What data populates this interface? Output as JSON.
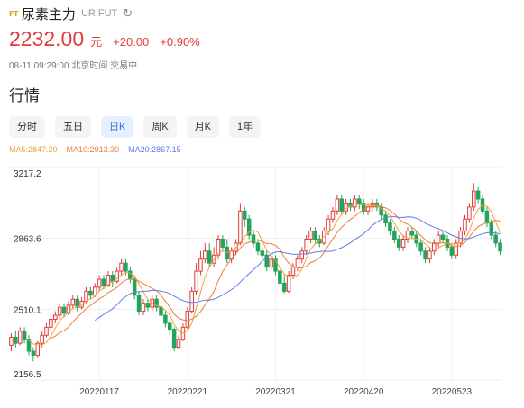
{
  "header": {
    "badge": "FT",
    "title": "尿素主力",
    "code": "UR.FUT",
    "refresh_icon": "refresh-icon"
  },
  "quote": {
    "price": "2232.00",
    "unit": "元",
    "change": "+20.00",
    "change_pct": "+0.90%",
    "time": "08-11 09:29:00 北京时间 交易中"
  },
  "section_title": "行情",
  "tabs": [
    "分时",
    "五日",
    "日K",
    "周K",
    "月K",
    "1年"
  ],
  "active_tab": 2,
  "ma": {
    "ma5": "MA5:2847.20",
    "ma10": "MA10:2913.30",
    "ma20": "MA20:2867.15"
  },
  "colors": {
    "up": "#e33b3b",
    "down": "#24a35a",
    "ma5": "#f0a23c",
    "ma10": "#ef7d33",
    "ma20": "#5a7fe0",
    "accent": "#3b6fe0"
  },
  "chart_data": {
    "type": "candlestick",
    "y_ticks": [
      "3217.2",
      "2863.6",
      "2510.1",
      "2156.5"
    ],
    "y_tick_values": [
      3217.2,
      2863.6,
      2510.1,
      2156.5
    ],
    "ylim": [
      2156.5,
      3217.2
    ],
    "x_ticks": [
      "20220117",
      "20220221",
      "20220321",
      "20220420",
      "20220523"
    ],
    "x_tick_index": [
      20,
      40,
      60,
      80,
      100
    ],
    "grid": true,
    "candles": [
      [
        2330,
        2370,
        2300,
        2390
      ],
      [
        2370,
        2340,
        2320,
        2400
      ],
      [
        2340,
        2400,
        2330,
        2420
      ],
      [
        2400,
        2360,
        2340,
        2420
      ],
      [
        2360,
        2300,
        2280,
        2380
      ],
      [
        2300,
        2280,
        2250,
        2320
      ],
      [
        2280,
        2340,
        2270,
        2350
      ],
      [
        2340,
        2380,
        2320,
        2400
      ],
      [
        2380,
        2420,
        2370,
        2440
      ],
      [
        2420,
        2460,
        2400,
        2480
      ],
      [
        2460,
        2480,
        2440,
        2500
      ],
      [
        2480,
        2520,
        2460,
        2540
      ],
      [
        2520,
        2490,
        2470,
        2540
      ],
      [
        2490,
        2530,
        2480,
        2550
      ],
      [
        2530,
        2560,
        2510,
        2580
      ],
      [
        2560,
        2520,
        2500,
        2580
      ],
      [
        2520,
        2550,
        2510,
        2570
      ],
      [
        2550,
        2600,
        2540,
        2620
      ],
      [
        2600,
        2580,
        2560,
        2620
      ],
      [
        2580,
        2620,
        2570,
        2640
      ],
      [
        2620,
        2660,
        2600,
        2680
      ],
      [
        2660,
        2630,
        2610,
        2680
      ],
      [
        2630,
        2680,
        2620,
        2700
      ],
      [
        2680,
        2650,
        2620,
        2700
      ],
      [
        2650,
        2700,
        2640,
        2720
      ],
      [
        2700,
        2740,
        2680,
        2760
      ],
      [
        2740,
        2700,
        2680,
        2760
      ],
      [
        2700,
        2660,
        2640,
        2720
      ],
      [
        2660,
        2580,
        2560,
        2680
      ],
      [
        2580,
        2500,
        2480,
        2600
      ],
      [
        2500,
        2540,
        2480,
        2560
      ],
      [
        2540,
        2520,
        2500,
        2560
      ],
      [
        2520,
        2560,
        2500,
        2580
      ],
      [
        2560,
        2520,
        2500,
        2580
      ],
      [
        2520,
        2480,
        2460,
        2540
      ],
      [
        2480,
        2440,
        2420,
        2500
      ],
      [
        2440,
        2410,
        2380,
        2460
      ],
      [
        2410,
        2320,
        2300,
        2420
      ],
      [
        2320,
        2360,
        2310,
        2380
      ],
      [
        2360,
        2420,
        2350,
        2440
      ],
      [
        2420,
        2500,
        2410,
        2520
      ],
      [
        2500,
        2600,
        2490,
        2620
      ],
      [
        2600,
        2700,
        2580,
        2740
      ],
      [
        2700,
        2760,
        2680,
        2800
      ],
      [
        2760,
        2800,
        2740,
        2840
      ],
      [
        2800,
        2740,
        2720,
        2840
      ],
      [
        2740,
        2780,
        2720,
        2820
      ],
      [
        2780,
        2860,
        2760,
        2880
      ],
      [
        2860,
        2820,
        2800,
        2880
      ],
      [
        2820,
        2760,
        2740,
        2860
      ],
      [
        2760,
        2800,
        2740,
        2820
      ],
      [
        2800,
        2840,
        2780,
        2860
      ],
      [
        2840,
        3000,
        2830,
        3040
      ],
      [
        3000,
        2960,
        2920,
        3020
      ],
      [
        2960,
        2880,
        2860,
        2980
      ],
      [
        2880,
        2840,
        2820,
        2900
      ],
      [
        2840,
        2800,
        2780,
        2860
      ],
      [
        2800,
        2780,
        2760,
        2820
      ],
      [
        2780,
        2720,
        2700,
        2800
      ],
      [
        2720,
        2760,
        2700,
        2780
      ],
      [
        2760,
        2700,
        2680,
        2780
      ],
      [
        2700,
        2640,
        2620,
        2720
      ],
      [
        2640,
        2600,
        2590,
        2680
      ],
      [
        2600,
        2680,
        2590,
        2700
      ],
      [
        2680,
        2720,
        2660,
        2740
      ],
      [
        2720,
        2760,
        2700,
        2780
      ],
      [
        2760,
        2800,
        2740,
        2820
      ],
      [
        2800,
        2860,
        2780,
        2880
      ],
      [
        2860,
        2900,
        2840,
        2920
      ],
      [
        2900,
        2860,
        2840,
        2920
      ],
      [
        2860,
        2840,
        2820,
        2880
      ],
      [
        2840,
        2900,
        2830,
        2920
      ],
      [
        2900,
        2960,
        2880,
        2980
      ],
      [
        2960,
        3000,
        2940,
        3020
      ],
      [
        3000,
        3060,
        2980,
        3080
      ],
      [
        3060,
        3000,
        2980,
        3080
      ],
      [
        3000,
        3040,
        2980,
        3060
      ],
      [
        3040,
        3020,
        3000,
        3060
      ],
      [
        3020,
        3060,
        3000,
        3080
      ],
      [
        3060,
        3040,
        3010,
        3080
      ],
      [
        3040,
        3000,
        2980,
        3060
      ],
      [
        3000,
        3020,
        2980,
        3040
      ],
      [
        3020,
        3040,
        3000,
        3060
      ],
      [
        3040,
        3020,
        3000,
        3060
      ],
      [
        3020,
        2980,
        2960,
        3040
      ],
      [
        2980,
        2940,
        2920,
        3000
      ],
      [
        2940,
        2900,
        2880,
        2960
      ],
      [
        2900,
        2860,
        2840,
        2920
      ],
      [
        2860,
        2820,
        2800,
        2880
      ],
      [
        2820,
        2860,
        2800,
        2880
      ],
      [
        2860,
        2900,
        2840,
        2920
      ],
      [
        2900,
        2880,
        2860,
        2920
      ],
      [
        2880,
        2840,
        2820,
        2900
      ],
      [
        2840,
        2800,
        2780,
        2860
      ],
      [
        2800,
        2760,
        2740,
        2820
      ],
      [
        2760,
        2800,
        2740,
        2820
      ],
      [
        2800,
        2840,
        2780,
        2860
      ],
      [
        2840,
        2880,
        2820,
        2900
      ],
      [
        2880,
        2860,
        2840,
        2900
      ],
      [
        2860,
        2820,
        2800,
        2880
      ],
      [
        2820,
        2780,
        2760,
        2840
      ],
      [
        2780,
        2840,
        2760,
        2860
      ],
      [
        2840,
        2900,
        2820,
        2920
      ],
      [
        2900,
        2960,
        2880,
        2980
      ],
      [
        2960,
        3020,
        2940,
        3040
      ],
      [
        3020,
        3100,
        3000,
        3140
      ],
      [
        3100,
        3060,
        3040,
        3120
      ],
      [
        3060,
        3000,
        2980,
        3080
      ],
      [
        3000,
        2940,
        2920,
        3020
      ],
      [
        2940,
        2880,
        2860,
        2960
      ],
      [
        2880,
        2840,
        2820,
        2900
      ],
      [
        2840,
        2800,
        2780,
        2860
      ]
    ]
  }
}
